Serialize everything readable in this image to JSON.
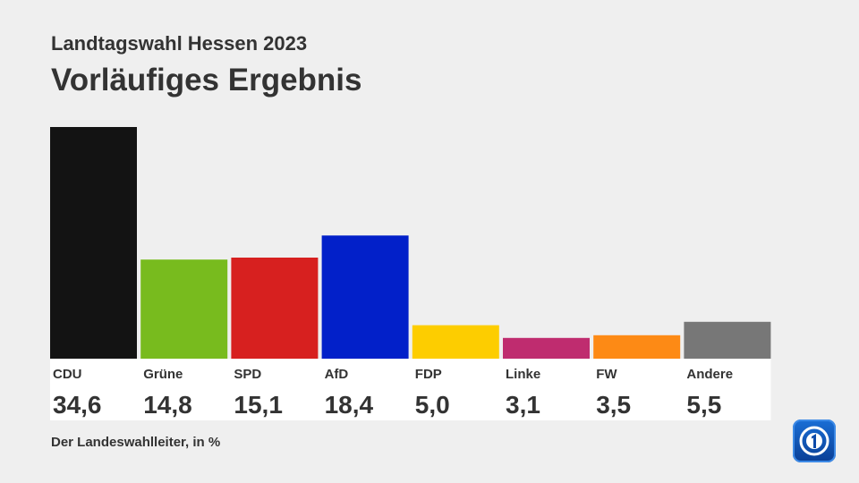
{
  "header": {
    "subtitle": "Landtagswahl Hessen 2023",
    "title": "Vorläufiges Ergebnis"
  },
  "footer": {
    "source": "Der Landeswahlleiter, in %"
  },
  "logo": {
    "icon": "tagesschau-1-logo-icon"
  },
  "chart_data": {
    "type": "bar",
    "title": "Vorläufiges Ergebnis",
    "subtitle": "Landtagswahl Hessen 2023",
    "categories": [
      "CDU",
      "Grüne",
      "SPD",
      "AfD",
      "FDP",
      "Linke",
      "FW",
      "Andere"
    ],
    "values": [
      34.6,
      14.8,
      15.1,
      18.4,
      5.0,
      3.1,
      3.5,
      5.5
    ],
    "value_labels": [
      "34,6",
      "14,8",
      "15,1",
      "18,4",
      "5,0",
      "3,1",
      "3,5",
      "5,5"
    ],
    "colors": [
      "#131313",
      "#78bb1e",
      "#d7201f",
      "#0220c9",
      "#fdcd00",
      "#bf2c6f",
      "#fd8a15",
      "#777777"
    ],
    "ylim": [
      0,
      34.6
    ],
    "grid": false,
    "legend": "none"
  }
}
